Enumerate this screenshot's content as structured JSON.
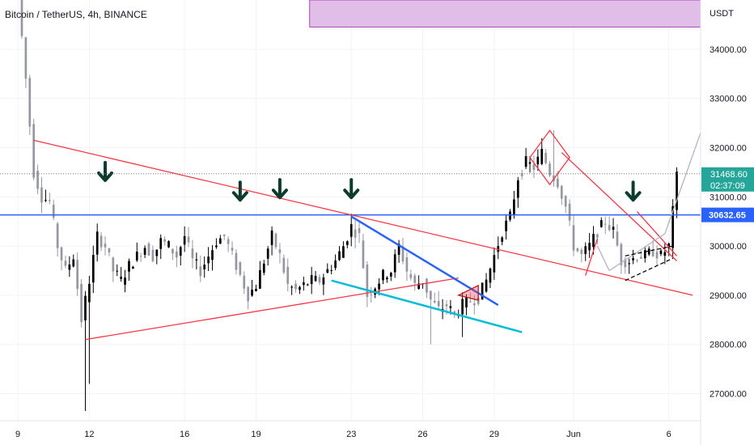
{
  "header": {
    "title": "Bitcoin / TetherUS, 4h, BINANCE",
    "currency": "USDT"
  },
  "chart_data": {
    "type": "candlestick",
    "ylim": [
      26450,
      35000
    ],
    "y_ticks": [
      34000,
      33000,
      32000,
      31000,
      30000,
      29000,
      28000,
      27000
    ],
    "y_tick_labels": [
      "34000.00",
      "33000.00",
      "32000.00",
      "31000.00",
      "30000.00",
      "29000.00",
      "28000.00",
      "27000.00"
    ],
    "x_ticks": [
      {
        "label": "9",
        "x": 0
      },
      {
        "label": "12",
        "x": 18
      },
      {
        "label": "16",
        "x": 42
      },
      {
        "label": "19",
        "x": 60
      },
      {
        "label": "23",
        "x": 84
      },
      {
        "label": "26",
        "x": 102
      },
      {
        "label": "29",
        "x": 120
      },
      {
        "label": "Jun",
        "x": 140
      },
      {
        "label": "6",
        "x": 164
      }
    ],
    "xlim": [
      -4.5,
      172
    ],
    "price_tag": {
      "price_label": "31468.60",
      "countdown": "02:37:09",
      "value": 31468.6,
      "color": "#26a69a"
    },
    "horizontal_line": {
      "value": 30632.65,
      "label": "30632.65",
      "color": "#2962ff"
    },
    "resistance_zone": {
      "from": 34450,
      "to": 35000,
      "color": "#e1bee7",
      "border": "#ab47bc"
    },
    "anchors": [
      {
        "x": 0,
        "value": 35100
      },
      {
        "x": 2,
        "value": 33400
      },
      {
        "x": 4,
        "value": 31500
      },
      {
        "x": 6,
        "value": 31000
      },
      {
        "x": 8,
        "value": 30900
      },
      {
        "x": 10,
        "value": 30000
      },
      {
        "x": 12,
        "value": 29500
      },
      {
        "x": 14,
        "value": 29800
      },
      {
        "x": 16,
        "value": 28500
      },
      {
        "x": 18,
        "value": 29300
      },
      {
        "x": 20,
        "value": 30200
      },
      {
        "x": 22,
        "value": 30000
      },
      {
        "x": 24,
        "value": 29500
      },
      {
        "x": 26,
        "value": 29300
      },
      {
        "x": 28,
        "value": 29600
      },
      {
        "x": 30,
        "value": 29800
      },
      {
        "x": 32,
        "value": 30000
      },
      {
        "x": 34,
        "value": 29800
      },
      {
        "x": 36,
        "value": 30100
      },
      {
        "x": 38,
        "value": 30000
      },
      {
        "x": 40,
        "value": 29800
      },
      {
        "x": 42,
        "value": 30200
      },
      {
        "x": 44,
        "value": 29700
      },
      {
        "x": 46,
        "value": 29500
      },
      {
        "x": 48,
        "value": 29800
      },
      {
        "x": 50,
        "value": 30100
      },
      {
        "x": 52,
        "value": 30200
      },
      {
        "x": 54,
        "value": 29800
      },
      {
        "x": 56,
        "value": 29400
      },
      {
        "x": 58,
        "value": 29000
      },
      {
        "x": 60,
        "value": 29200
      },
      {
        "x": 62,
        "value": 29700
      },
      {
        "x": 64,
        "value": 30200
      },
      {
        "x": 66,
        "value": 29800
      },
      {
        "x": 68,
        "value": 29200
      },
      {
        "x": 70,
        "value": 29100
      },
      {
        "x": 72,
        "value": 29200
      },
      {
        "x": 74,
        "value": 29300
      },
      {
        "x": 76,
        "value": 29300
      },
      {
        "x": 78,
        "value": 29500
      },
      {
        "x": 80,
        "value": 29700
      },
      {
        "x": 82,
        "value": 30000
      },
      {
        "x": 84,
        "value": 30400
      },
      {
        "x": 86,
        "value": 30200
      },
      {
        "x": 88,
        "value": 29000
      },
      {
        "x": 90,
        "value": 29200
      },
      {
        "x": 92,
        "value": 29400
      },
      {
        "x": 94,
        "value": 29500
      },
      {
        "x": 96,
        "value": 30000
      },
      {
        "x": 98,
        "value": 29500
      },
      {
        "x": 100,
        "value": 29200
      },
      {
        "x": 102,
        "value": 29300
      },
      {
        "x": 104,
        "value": 28900
      },
      {
        "x": 106,
        "value": 28700
      },
      {
        "x": 108,
        "value": 28800
      },
      {
        "x": 110,
        "value": 28600
      },
      {
        "x": 112,
        "value": 28800
      },
      {
        "x": 114,
        "value": 28900
      },
      {
        "x": 116,
        "value": 28950
      },
      {
        "x": 118,
        "value": 29300
      },
      {
        "x": 120,
        "value": 29800
      },
      {
        "x": 122,
        "value": 30300
      },
      {
        "x": 124,
        "value": 30600
      },
      {
        "x": 126,
        "value": 31400
      },
      {
        "x": 128,
        "value": 31700
      },
      {
        "x": 130,
        "value": 31600
      },
      {
        "x": 132,
        "value": 31900
      },
      {
        "x": 134,
        "value": 31500
      },
      {
        "x": 136,
        "value": 31300
      },
      {
        "x": 138,
        "value": 30800
      },
      {
        "x": 140,
        "value": 30000
      },
      {
        "x": 142,
        "value": 29800
      },
      {
        "x": 144,
        "value": 30000
      },
      {
        "x": 146,
        "value": 30300
      },
      {
        "x": 148,
        "value": 30500
      },
      {
        "x": 150,
        "value": 30300
      },
      {
        "x": 152,
        "value": 29700
      },
      {
        "x": 154,
        "value": 29700
      },
      {
        "x": 156,
        "value": 29800
      },
      {
        "x": 158,
        "value": 29800
      },
      {
        "x": 160,
        "value": 29900
      },
      {
        "x": 162,
        "value": 29800
      },
      {
        "x": 164,
        "value": 30000
      },
      {
        "x": 166,
        "value": 31400
      }
    ],
    "spikes": [
      {
        "x": 17,
        "low": 26650
      },
      {
        "x": 18,
        "low": 27200
      },
      {
        "x": 112,
        "low": 28150
      },
      {
        "x": 104,
        "low": 28000
      },
      {
        "x": 135,
        "high": 32350
      },
      {
        "x": 166,
        "high": 31600
      }
    ],
    "lines": [
      {
        "x1": 4,
        "y1": 32150,
        "x2": 170,
        "y2": 29000,
        "color": "#f23645"
      },
      {
        "x1": 17,
        "y1": 28100,
        "x2": 111,
        "y2": 29350,
        "color": "#f23645"
      },
      {
        "x1": 84,
        "y1": 30600,
        "x2": 121,
        "y2": 28800,
        "color": "#2962ff",
        "width": 2.5
      },
      {
        "x1": 79,
        "y1": 29300,
        "x2": 127,
        "y2": 28250,
        "color": "#00bcd4",
        "width": 2.5
      },
      {
        "x1": 137,
        "y1": 31900,
        "x2": 166,
        "y2": 29700,
        "color": "#f23645"
      },
      {
        "x1": 156,
        "y1": 30700,
        "x2": 166,
        "y2": 29800,
        "color": "#f23645"
      },
      {
        "x1": 143,
        "y1": 29400,
        "x2": 146,
        "y2": 30150,
        "color": "#f23645"
      },
      {
        "x1": 146,
        "y1": 30000,
        "x2": 149,
        "y2": 29500,
        "color": "#b2b5be"
      },
      {
        "x1": 149,
        "y1": 29500,
        "x2": 163,
        "y2": 30250,
        "color": "#b2b5be"
      },
      {
        "x1": 163,
        "y1": 30250,
        "x2": 172,
        "y2": 32300,
        "color": "#b2b5be"
      }
    ],
    "dashed_lines": [
      {
        "x1": 153,
        "y1": 29300,
        "x2": 165,
        "y2": 29750,
        "color": "#000000"
      },
      {
        "x1": 153,
        "y1": 29800,
        "x2": 165,
        "y2": 30000,
        "color": "#000000"
      }
    ],
    "polygons": [
      {
        "points": [
          [
            129,
            31800
          ],
          [
            134,
            32350
          ],
          [
            139,
            31800
          ],
          [
            134,
            31250
          ]
        ],
        "color": "#f23645"
      },
      {
        "points": [
          [
            111,
            29000
          ],
          [
            116,
            29200
          ],
          [
            116,
            28900
          ]
        ],
        "color": "#b71c1c",
        "fill": "#f23645"
      }
    ],
    "arrows": [
      {
        "x": 22,
        "value": 31500
      },
      {
        "x": 56,
        "value": 31100
      },
      {
        "x": 66,
        "value": 31150
      },
      {
        "x": 84,
        "value": 31150
      },
      {
        "x": 155,
        "value": 31100
      }
    ],
    "colors": {
      "up": "#000000",
      "down": "#9598a1",
      "grid": "#f0f3fa",
      "axis_text": "#131722"
    }
  }
}
